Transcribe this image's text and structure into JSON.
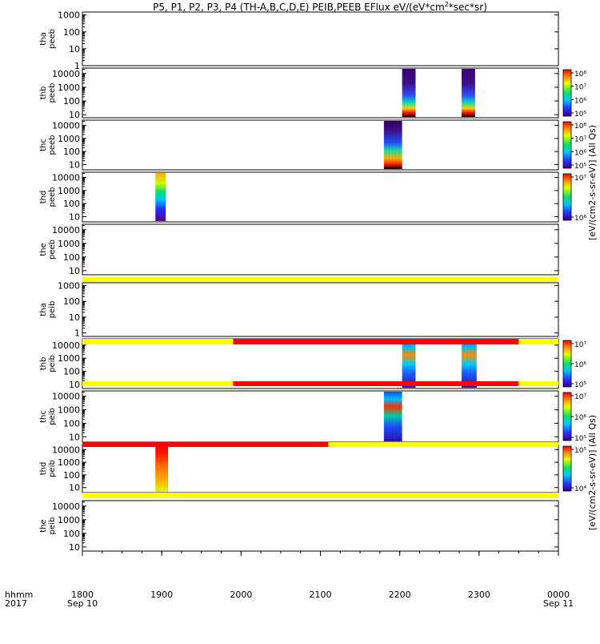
{
  "chart_data": {
    "type": "heatmap",
    "title": "P5, P1, P2, P3, P4 (TH-A,B,C,D,E) PEIB,PEEB EFlux eV/(eV*cm",
    "title_sup": "2",
    "title_tail": "*sec*sr)",
    "x_axis": {
      "row1_label": "hhmm",
      "row2_label": "2017",
      "ticks": [
        "1800",
        "1900",
        "2000",
        "2100",
        "2200",
        "2300",
        "0000"
      ],
      "start_date": "Sep 10",
      "end_date": "Sep 11",
      "range_hours": [
        18,
        24
      ]
    },
    "panels": [
      {
        "name": "tha peeb",
        "label1": "tha",
        "label2": "peeb",
        "yticks": [
          "1000",
          "100",
          "10",
          "1"
        ],
        "ylog": true,
        "ylim": [
          1,
          1500
        ],
        "data": []
      },
      {
        "name": "thb peeb",
        "label1": "thb",
        "label2": "peeb",
        "yticks": [
          "10000",
          "1000",
          "100",
          "10"
        ],
        "ylog": true,
        "ylim": [
          6,
          25000
        ],
        "data": [
          {
            "t_start": "22:03",
            "t_end": "22:20",
            "style": "peeb-a"
          },
          {
            "t_start": "22:78",
            "t_end": "22:95",
            "style": "peeb-a"
          }
        ]
      },
      {
        "name": "thc peeb",
        "label1": "thc",
        "label2": "peeb",
        "yticks": [
          "10000",
          "1000",
          "100",
          "10"
        ],
        "ylog": true,
        "ylim": [
          4,
          25000
        ],
        "data": [
          {
            "t_start": "21:80",
            "t_end": "22:03",
            "style": "peeb-b"
          }
        ]
      },
      {
        "name": "thd peeb",
        "label1": "thd",
        "label2": "peeb",
        "yticks": [
          "10000",
          "1000",
          "100",
          "10"
        ],
        "ylog": true,
        "ylim": [
          4,
          25000
        ],
        "data": [
          {
            "t_start": "18:92",
            "t_end": "19:05",
            "style": "peeb-c"
          }
        ]
      },
      {
        "name": "the peeb",
        "label1": "the",
        "label2": "peeb",
        "yticks": [
          "10000",
          "1000",
          "100",
          "10"
        ],
        "ylog": true,
        "ylim": [
          5,
          25000
        ],
        "data": []
      },
      {
        "name": "tha peib",
        "label1": "tha",
        "label2": "peib",
        "yticks": [
          "1000",
          "100",
          "10",
          "1"
        ],
        "ylog": true,
        "ylim": [
          0.6,
          1500
        ],
        "data": []
      },
      {
        "name": "thb peib",
        "label1": "thb",
        "label2": "peib",
        "yticks": [
          "10000",
          "1000",
          "100",
          "10"
        ],
        "ylog": true,
        "ylim": [
          5,
          30000
        ],
        "data": [
          {
            "t_start": "22:03",
            "t_end": "22:20",
            "style": "peib-a"
          },
          {
            "t_start": "22:78",
            "t_end": "22:97",
            "style": "peib-a"
          }
        ]
      },
      {
        "name": "thc peib",
        "label1": "thc",
        "label2": "peib",
        "yticks": [
          "10000",
          "1000",
          "100",
          "10"
        ],
        "ylog": true,
        "ylim": [
          4,
          25000
        ],
        "data": [
          {
            "t_start": "21:80",
            "t_end": "22:03",
            "style": "peib-b"
          }
        ]
      },
      {
        "name": "thd peib",
        "label1": "thd",
        "label2": "peib",
        "yticks": [
          "10000",
          "1000",
          "100",
          "10"
        ],
        "ylog": true,
        "ylim": [
          4,
          25000
        ],
        "data": [
          {
            "t_start": "18:92",
            "t_end": "19:08",
            "style": "peib-c"
          }
        ]
      },
      {
        "name": "the peib",
        "label1": "the",
        "label2": "peib",
        "yticks": [
          "10000",
          "1000",
          "100",
          "10"
        ],
        "ylog": true,
        "ylim": [
          5,
          25000
        ],
        "data": []
      }
    ],
    "status_bars": [
      {
        "after_panel": 4,
        "segments": [
          {
            "from": 18,
            "to": 24,
            "color": "#ffff00"
          }
        ]
      },
      {
        "after_panel": 5,
        "segments": [
          {
            "from": 18,
            "to": 19.9,
            "color": "#ffff00"
          },
          {
            "from": 19.9,
            "to": 23.5,
            "color": "#ff0000"
          },
          {
            "from": 23.5,
            "to": 24,
            "color": "#ffff00"
          }
        ]
      },
      {
        "after_panel": 6,
        "segments": [
          {
            "from": 18,
            "to": 19.9,
            "color": "#ffff00"
          },
          {
            "from": 19.9,
            "to": 23.5,
            "color": "#ff0000"
          },
          {
            "from": 23.5,
            "to": 24,
            "color": "#ffff00"
          }
        ]
      },
      {
        "after_panel": 7,
        "segments": [
          {
            "from": 18,
            "to": 21.1,
            "color": "#ff0000"
          },
          {
            "from": 21.1,
            "to": 24,
            "color": "#ffff00"
          }
        ]
      },
      {
        "after_panel": 8,
        "segments": [
          {
            "from": 18,
            "to": 24,
            "color": "#ffff00"
          }
        ]
      }
    ],
    "colorbars": [
      {
        "panels": [
          1
        ],
        "ticks": [
          "10⁸",
          "10⁷",
          "10⁶",
          "10⁵"
        ],
        "label": "[eV/(cm2-s-sr-eV)] (All Qs)"
      },
      {
        "panels": [
          2
        ],
        "ticks": [
          "10⁸",
          "10⁷",
          "10⁶",
          "10⁵"
        ],
        "label": ""
      },
      {
        "panels": [
          3
        ],
        "ticks": [
          "10⁷",
          "10⁶"
        ],
        "label": ""
      },
      {
        "panels": [
          6
        ],
        "ticks": [
          "10⁷",
          "10⁶",
          "10⁵"
        ],
        "label": "[eV/(cm2-s-sr-eV)] (All Qs)"
      },
      {
        "panels": [
          7
        ],
        "ticks": [
          "10⁷",
          "10⁶",
          "10⁵"
        ],
        "label": ""
      },
      {
        "panels": [
          8
        ],
        "ticks": [
          "10⁵",
          "10⁴"
        ],
        "label": ""
      }
    ],
    "colorbar_labels": [
      "[eV/(cm2-s-sr-eV)] (All Qs)",
      "[eV/(cm2-s-sr-eV)] (All Qs)"
    ]
  }
}
